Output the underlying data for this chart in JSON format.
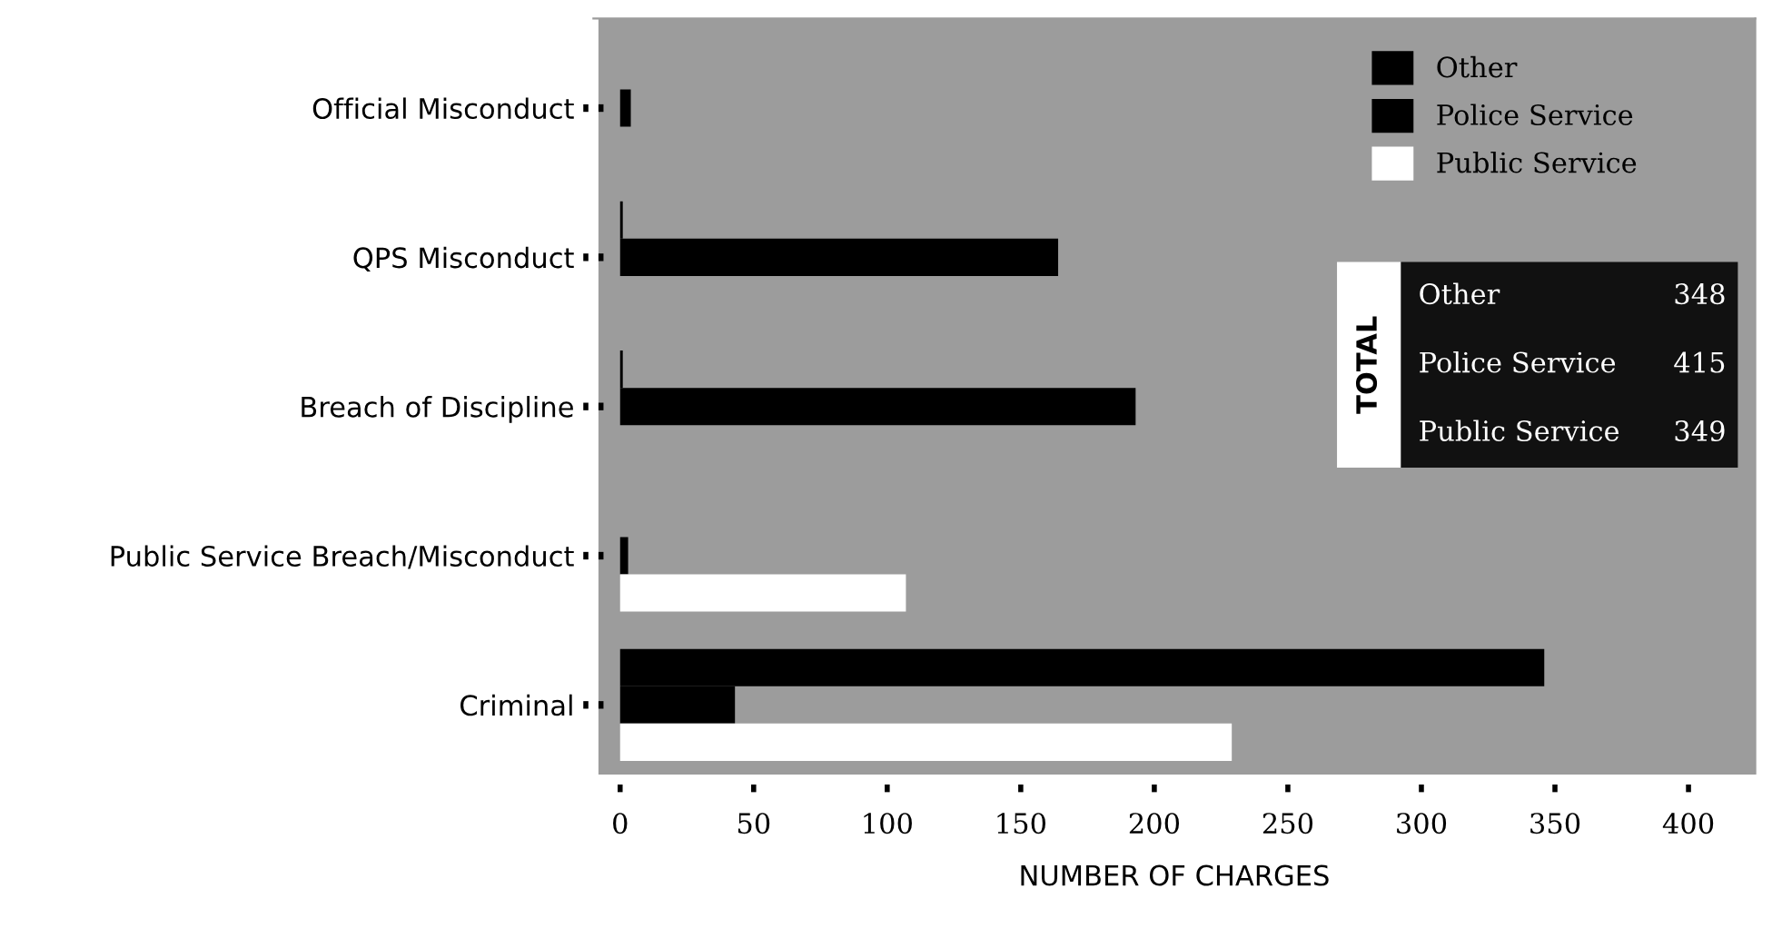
{
  "chart_data": {
    "type": "bar",
    "orientation": "horizontal",
    "xlabel": "NUMBER OF CHARGES",
    "categories": [
      "Official Misconduct",
      "QPS Misconduct",
      "Breach of Discipline",
      "Public Service Breach/Misconduct",
      "Criminal"
    ],
    "series": [
      {
        "name": "Other",
        "color": "#000000",
        "values": [
          0,
          1,
          1,
          0,
          346
        ]
      },
      {
        "name": "Police Service",
        "color": "#000000",
        "values": [
          4,
          164,
          193,
          3,
          43
        ]
      },
      {
        "name": "Public Service",
        "color": "#ffffff",
        "values": [
          0,
          0,
          0,
          107,
          229
        ]
      }
    ],
    "xlim": [
      -10,
      425
    ],
    "xticks": [
      0,
      50,
      100,
      150,
      200,
      250,
      300,
      350,
      400
    ],
    "grid": false,
    "legend": "top right",
    "annotations": [
      "TOTAL",
      "Other",
      "348",
      "Police Service",
      "415",
      "Public Service",
      "349"
    ]
  }
}
